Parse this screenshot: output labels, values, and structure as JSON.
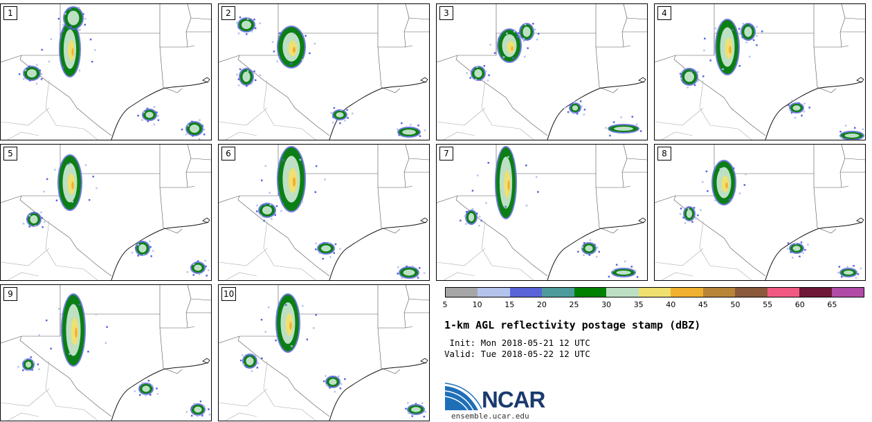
{
  "colors": {
    "scale": [
      "#a6a6a6",
      "#b4c3ec",
      "#5964d8",
      "#4e9b9b",
      "#008000",
      "#bde0c4",
      "#f0e070",
      "#f0b030",
      "#b88538",
      "#8b5a3c",
      "#f05a82",
      "#701838",
      "#b04ca8"
    ]
  },
  "panels": [
    {
      "label": "1"
    },
    {
      "label": "2"
    },
    {
      "label": "3"
    },
    {
      "label": "4"
    },
    {
      "label": "5"
    },
    {
      "label": "6"
    },
    {
      "label": "7"
    },
    {
      "label": "8"
    },
    {
      "label": "9"
    },
    {
      "label": "10"
    }
  ],
  "legend": {
    "ticks": [
      "5",
      "10",
      "15",
      "20",
      "25",
      "30",
      "35",
      "40",
      "45",
      "50",
      "55",
      "60",
      "65"
    ],
    "title": "1-km AGL reflectivity postage stamp (dBZ)",
    "init": " Init: Mon 2018-05-21 12 UTC",
    "valid": "Valid: Tue 2018-05-22 12 UTC",
    "logo_text": "NCAR",
    "website": "ensemble.ucar.edu"
  }
}
